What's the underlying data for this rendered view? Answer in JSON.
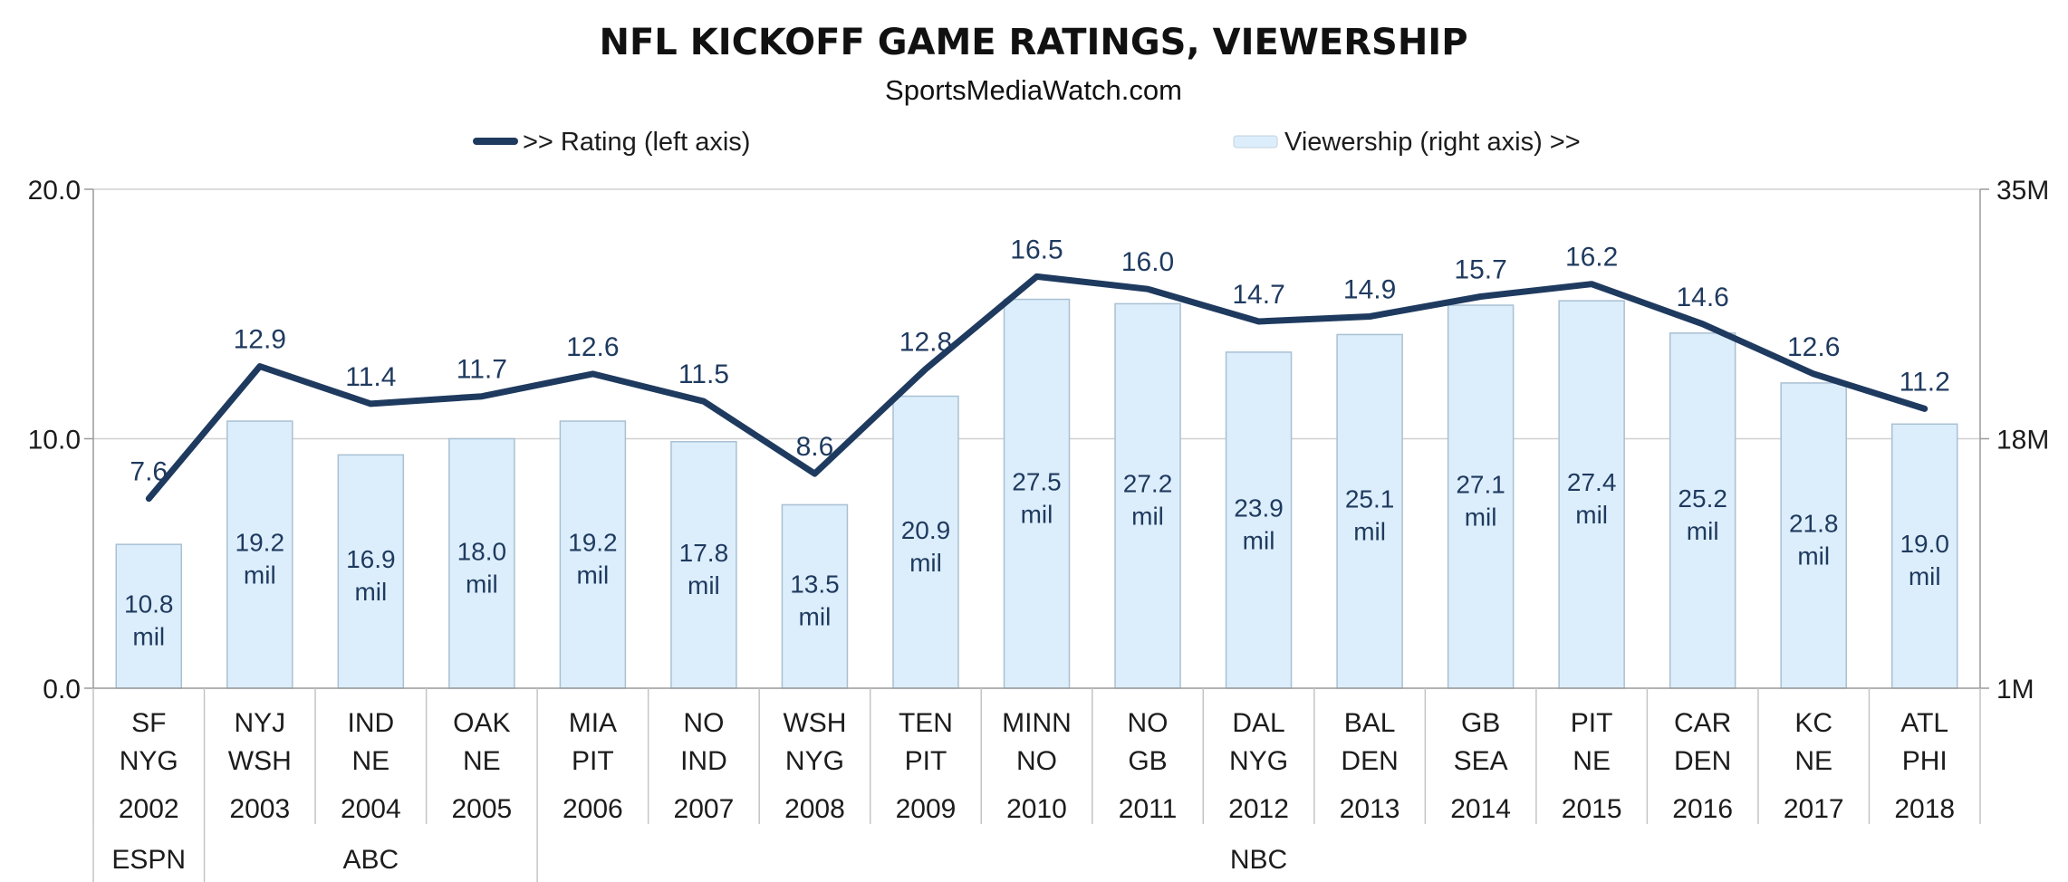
{
  "chart_data": {
    "type": "bar-line-combo",
    "title": "NFL KICKOFF GAME RATINGS, VIEWERSHIP",
    "subtitle": "SportsMediaWatch.com",
    "legend": {
      "placement": "top",
      "line_entry": ">> Rating (left axis)",
      "bar_entry": "Viewership (right axis) >>"
    },
    "colors": {
      "line": "#1f3a5f",
      "bar_fill": "#dceefb",
      "bar_stroke": "#a9c0d3",
      "grid": "#d0d0d0"
    },
    "grid": true,
    "left_axis": {
      "ylim": [
        0,
        20
      ],
      "ticks": [
        "0.0",
        "10.0",
        "20.0"
      ]
    },
    "right_axis": {
      "ylim": [
        1,
        35
      ],
      "ticks": [
        "1M",
        "18M",
        "35M"
      ]
    },
    "categories": [
      {
        "teams": [
          "SF",
          "NYG"
        ],
        "year": "2002"
      },
      {
        "teams": [
          "NYJ",
          "WSH"
        ],
        "year": "2003"
      },
      {
        "teams": [
          "IND",
          "NE"
        ],
        "year": "2004"
      },
      {
        "teams": [
          "OAK",
          "NE"
        ],
        "year": "2005"
      },
      {
        "teams": [
          "MIA",
          "PIT"
        ],
        "year": "2006"
      },
      {
        "teams": [
          "NO",
          "IND"
        ],
        "year": "2007"
      },
      {
        "teams": [
          "WSH",
          "NYG"
        ],
        "year": "2008"
      },
      {
        "teams": [
          "TEN",
          "PIT"
        ],
        "year": "2009"
      },
      {
        "teams": [
          "MINN",
          "NO"
        ],
        "year": "2010"
      },
      {
        "teams": [
          "NO",
          "GB"
        ],
        "year": "2011"
      },
      {
        "teams": [
          "DAL",
          "NYG"
        ],
        "year": "2012"
      },
      {
        "teams": [
          "BAL",
          "DEN"
        ],
        "year": "2013"
      },
      {
        "teams": [
          "GB",
          "SEA"
        ],
        "year": "2014"
      },
      {
        "teams": [
          "PIT",
          "NE"
        ],
        "year": "2015"
      },
      {
        "teams": [
          "CAR",
          "DEN"
        ],
        "year": "2016"
      },
      {
        "teams": [
          "KC",
          "NE"
        ],
        "year": "2017"
      },
      {
        "teams": [
          "ATL",
          "PHI"
        ],
        "year": "2018"
      }
    ],
    "networks": [
      {
        "name": "ESPN",
        "span": [
          0,
          0
        ]
      },
      {
        "name": "ABC",
        "span": [
          1,
          3
        ]
      },
      {
        "name": "NBC",
        "span": [
          4,
          16
        ]
      }
    ],
    "series": [
      {
        "name": "Rating (left axis)",
        "kind": "line",
        "axis": "left",
        "values": [
          7.6,
          12.9,
          11.4,
          11.7,
          12.6,
          11.5,
          8.6,
          12.8,
          16.5,
          16.0,
          14.7,
          14.9,
          15.7,
          16.2,
          14.6,
          12.6,
          11.2
        ],
        "labels": [
          "7.6",
          "12.9",
          "11.4",
          "11.7",
          "12.6",
          "11.5",
          "8.6",
          "12.8",
          "16.5",
          "16.0",
          "14.7",
          "14.9",
          "15.7",
          "16.2",
          "14.6",
          "12.6",
          "11.2"
        ]
      },
      {
        "name": "Viewership (right axis)",
        "kind": "bar",
        "axis": "right",
        "values": [
          10.8,
          19.2,
          16.9,
          18.0,
          19.2,
          17.8,
          13.5,
          20.9,
          27.5,
          27.2,
          23.9,
          25.1,
          27.1,
          27.4,
          25.2,
          21.8,
          19.0
        ],
        "labels": [
          "10.8",
          "19.2",
          "16.9",
          "18.0",
          "19.2",
          "17.8",
          "13.5",
          "20.9",
          "27.5",
          "27.2",
          "23.9",
          "25.1",
          "27.1",
          "27.4",
          "25.2",
          "21.8",
          "19.0"
        ],
        "unit_label": "mil"
      }
    ]
  }
}
